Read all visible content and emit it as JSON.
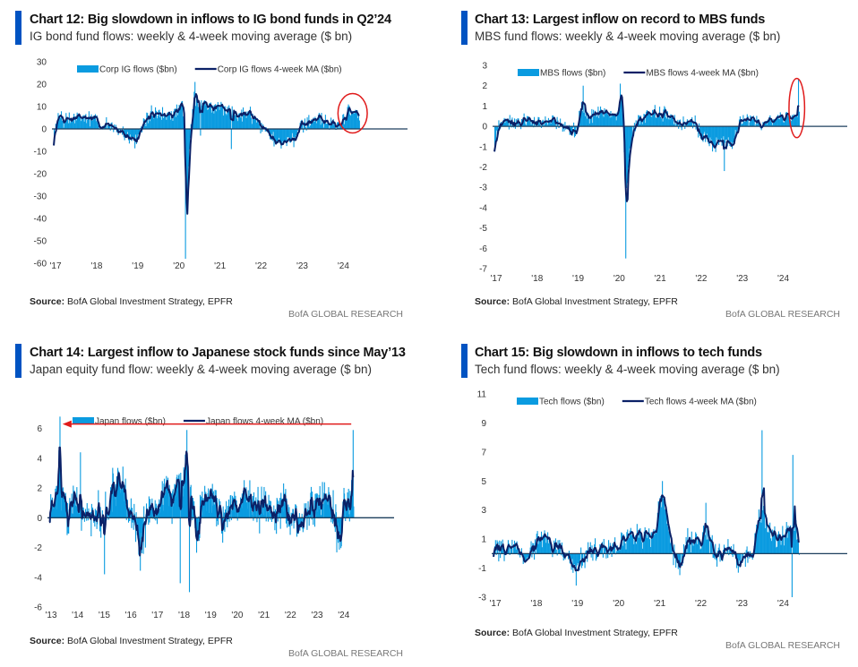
{
  "colors": {
    "bar": "#0a9be0",
    "ma": "#0b2167",
    "zero": "#1d3f5e",
    "accent": "#0053c2",
    "highlight": "#e01b1b"
  },
  "footer": {
    "source_label": "Source:",
    "source_text": " BofA Global Investment Strategy, EPFR",
    "brand": "BofA GLOBAL RESEARCH"
  },
  "chart_data": [
    {
      "id": "chart12",
      "type": "bar+line",
      "title": "Chart 12: Big slowdown in inflows to IG bond funds in Q2’24",
      "subtitle": "IG bond fund flows: weekly & 4-week moving average ($ bn)",
      "legend": [
        "Corp IG flows ($bn)",
        "Corp IG flows 4-week MA ($bn)"
      ],
      "legend_position": "top",
      "yticks": [
        30,
        20,
        10,
        0,
        -10,
        -20,
        -30,
        -40,
        -50,
        -60
      ],
      "ylim": [
        -60,
        30
      ],
      "xticks": [
        "'17",
        "'18",
        "'19",
        "'20",
        "'21",
        "'22",
        "'23",
        "'24"
      ],
      "xstart": 2017,
      "xend": 2024.45,
      "anchors": [
        [
          2017.0,
          -4
        ],
        [
          2017.1,
          4
        ],
        [
          2017.5,
          5
        ],
        [
          2017.9,
          5
        ],
        [
          2018.2,
          2
        ],
        [
          2018.5,
          1
        ],
        [
          2018.8,
          -4
        ],
        [
          2019.0,
          -6
        ],
        [
          2019.15,
          3
        ],
        [
          2019.4,
          7
        ],
        [
          2019.8,
          6
        ],
        [
          2020.0,
          8
        ],
        [
          2020.1,
          12
        ],
        [
          2020.17,
          5
        ],
        [
          2020.22,
          -40
        ],
        [
          2020.3,
          -5
        ],
        [
          2020.4,
          14
        ],
        [
          2020.6,
          12
        ],
        [
          2020.9,
          10
        ],
        [
          2021.2,
          8
        ],
        [
          2021.5,
          7
        ],
        [
          2021.8,
          6
        ],
        [
          2022.0,
          2
        ],
        [
          2022.2,
          -3
        ],
        [
          2022.5,
          -5
        ],
        [
          2022.8,
          -6
        ],
        [
          2023.0,
          2
        ],
        [
          2023.3,
          4
        ],
        [
          2023.6,
          3
        ],
        [
          2023.9,
          1
        ],
        [
          2024.0,
          3
        ],
        [
          2024.15,
          8
        ],
        [
          2024.3,
          7
        ],
        [
          2024.4,
          5
        ]
      ],
      "spikes": [
        [
          2020.2,
          -58
        ],
        [
          2020.42,
          21
        ],
        [
          2020.55,
          -3
        ],
        [
          2021.3,
          -9
        ]
      ],
      "noise": 3.5,
      "annotation": {
        "type": "ellipse",
        "around": [
          2024.0,
          2024.45
        ]
      }
    },
    {
      "id": "chart13",
      "type": "bar+line",
      "title": "Chart 13: Largest inflow on record to MBS funds",
      "subtitle": "MBS fund flows: weekly & 4-week moving average ($ bn)",
      "legend": [
        "MBS flows ($bn)",
        "MBS flows 4-week MA ($bn)"
      ],
      "legend_position": "top",
      "yticks": [
        3,
        2,
        1,
        0,
        -1,
        -2,
        -3,
        -4,
        -5,
        -6,
        -7
      ],
      "ylim": [
        -7,
        3
      ],
      "xticks": [
        "'17",
        "'18",
        "'19",
        "'20",
        "'21",
        "'22",
        "'23",
        "'24"
      ],
      "xstart": 2017,
      "xend": 2024.45,
      "anchors": [
        [
          2017.0,
          -1
        ],
        [
          2017.1,
          0.2
        ],
        [
          2017.6,
          0.2
        ],
        [
          2018.0,
          0.2
        ],
        [
          2018.5,
          0.2
        ],
        [
          2018.8,
          -0.2
        ],
        [
          2019.0,
          -0.3
        ],
        [
          2019.1,
          1
        ],
        [
          2019.3,
          0.5
        ],
        [
          2019.6,
          0.8
        ],
        [
          2019.9,
          0.5
        ],
        [
          2020.0,
          0.6
        ],
        [
          2020.1,
          1.4
        ],
        [
          2020.2,
          -3.5
        ],
        [
          2020.3,
          -0.8
        ],
        [
          2020.5,
          0.3
        ],
        [
          2020.8,
          0.6
        ],
        [
          2021.0,
          0.6
        ],
        [
          2021.3,
          0.5
        ],
        [
          2021.6,
          0.1
        ],
        [
          2021.9,
          0.2
        ],
        [
          2022.0,
          -0.3
        ],
        [
          2022.3,
          -1
        ],
        [
          2022.5,
          -0.6
        ],
        [
          2022.8,
          -0.9
        ],
        [
          2023.0,
          0.3
        ],
        [
          2023.3,
          0.2
        ],
        [
          2023.7,
          0.3
        ],
        [
          2024.0,
          0.5
        ],
        [
          2024.3,
          0.6
        ],
        [
          2024.4,
          0.8
        ]
      ],
      "spikes": [
        [
          2020.2,
          -6.5
        ],
        [
          2019.15,
          2
        ],
        [
          2020.06,
          2.1
        ],
        [
          2024.4,
          2.3
        ],
        [
          2022.6,
          -2.2
        ]
      ],
      "noise": 0.4,
      "annotation": {
        "type": "ellipse",
        "around": [
          2024.25,
          2024.5
        ]
      }
    },
    {
      "id": "chart14",
      "type": "bar+line",
      "title": "Chart 14: Largest inflow to Japanese stock funds since May’13",
      "subtitle": "Japan equity fund flow: weekly & 4-week moving average ($ bn)",
      "legend": [
        "Japan flows ($bn)",
        "Japan flows 4-week MA ($bn)"
      ],
      "legend_position": "top",
      "yticks": [
        6,
        4,
        2,
        0,
        -2,
        -4,
        -6
      ],
      "ylim": [
        -6,
        7
      ],
      "xticks": [
        "'13",
        "'14",
        "'15",
        "'16",
        "'17",
        "'18",
        "'19",
        "'20",
        "'21",
        "'22",
        "'23",
        "'24"
      ],
      "xstart": 2013,
      "xend": 2024.45,
      "anchors": [
        [
          2013.0,
          0.2
        ],
        [
          2013.2,
          1
        ],
        [
          2013.35,
          3
        ],
        [
          2013.5,
          0.8
        ],
        [
          2014.0,
          0.5
        ],
        [
          2014.3,
          0
        ],
        [
          2014.6,
          0.3
        ],
        [
          2015.0,
          0
        ],
        [
          2015.3,
          1.5
        ],
        [
          2015.6,
          2.5
        ],
        [
          2015.9,
          1
        ],
        [
          2016.2,
          -0.2
        ],
        [
          2016.4,
          -2
        ],
        [
          2016.7,
          0.5
        ],
        [
          2017.0,
          0.6
        ],
        [
          2017.3,
          2
        ],
        [
          2017.6,
          1
        ],
        [
          2017.9,
          2.5
        ],
        [
          2018.1,
          3.3
        ],
        [
          2018.3,
          1
        ],
        [
          2018.5,
          -1
        ],
        [
          2018.8,
          1
        ],
        [
          2019.0,
          1.8
        ],
        [
          2019.3,
          0.5
        ],
        [
          2019.6,
          -0.3
        ],
        [
          2020.0,
          1
        ],
        [
          2020.3,
          1.5
        ],
        [
          2020.6,
          0.8
        ],
        [
          2021.0,
          0.8
        ],
        [
          2021.4,
          0.3
        ],
        [
          2021.8,
          0.8
        ],
        [
          2022.0,
          0.2
        ],
        [
          2022.4,
          -0.4
        ],
        [
          2022.8,
          0.5
        ],
        [
          2023.0,
          0.8
        ],
        [
          2023.3,
          1.5
        ],
        [
          2023.6,
          0.5
        ],
        [
          2023.9,
          -1.5
        ],
        [
          2024.1,
          0.8
        ],
        [
          2024.4,
          1.2
        ]
      ],
      "spikes": [
        [
          2013.38,
          6.8
        ],
        [
          2015.05,
          -3.8
        ],
        [
          2018.15,
          5.9
        ],
        [
          2018.25,
          -5
        ],
        [
          2017.9,
          -4.4
        ],
        [
          2024.4,
          5.9
        ],
        [
          2014.15,
          4.4
        ]
      ],
      "noise": 1.6,
      "annotation": {
        "type": "arrow",
        "from": 2024.35,
        "to": 2013.5,
        "value": 6.3
      }
    },
    {
      "id": "chart15",
      "type": "bar+line",
      "title": "Chart 15: Big slowdown in inflows to tech funds",
      "subtitle": "Tech fund flows: weekly & 4-week moving average ($ bn)",
      "legend": [
        "Tech flows ($bn)",
        "Tech flows 4-week MA ($bn)"
      ],
      "legend_position": "top",
      "yticks": [
        11,
        9,
        7,
        5,
        3,
        1,
        -1,
        -3
      ],
      "ylim": [
        -3,
        11
      ],
      "xticks": [
        "'17",
        "'18",
        "'19",
        "'20",
        "'21",
        "'22",
        "'23",
        "'24"
      ],
      "xstart": 2017,
      "xend": 2024.45,
      "anchors": [
        [
          2017.0,
          0.3
        ],
        [
          2017.5,
          0.3
        ],
        [
          2017.8,
          0
        ],
        [
          2018.1,
          0.8
        ],
        [
          2018.4,
          0.8
        ],
        [
          2018.7,
          0
        ],
        [
          2019.0,
          -1
        ],
        [
          2019.3,
          0.2
        ],
        [
          2019.7,
          0.3
        ],
        [
          2020.0,
          0.6
        ],
        [
          2020.3,
          1.3
        ],
        [
          2020.6,
          1.3
        ],
        [
          2020.9,
          1
        ],
        [
          2021.1,
          4.5
        ],
        [
          2021.3,
          0.3
        ],
        [
          2021.5,
          -1
        ],
        [
          2021.7,
          1
        ],
        [
          2022.0,
          0.8
        ],
        [
          2022.2,
          1.5
        ],
        [
          2022.4,
          -0.4
        ],
        [
          2022.7,
          0.3
        ],
        [
          2023.0,
          -0.4
        ],
        [
          2023.3,
          0.2
        ],
        [
          2023.5,
          3
        ],
        [
          2023.7,
          1.5
        ],
        [
          2024.0,
          1
        ],
        [
          2024.2,
          2
        ],
        [
          2024.35,
          1.7
        ],
        [
          2024.45,
          0
        ]
      ],
      "spikes": [
        [
          2023.52,
          8.5
        ],
        [
          2024.27,
          6.8
        ],
        [
          2024.25,
          -3
        ],
        [
          2019.0,
          -2.2
        ],
        [
          2022.15,
          3.5
        ]
      ],
      "noise": 0.9,
      "annotation": null
    }
  ]
}
